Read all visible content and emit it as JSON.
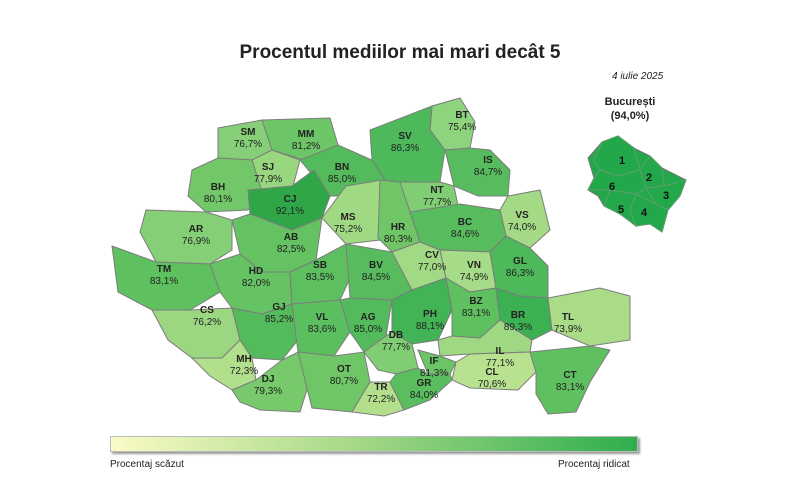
{
  "title": "Procentul mediilor mai mari decât 5",
  "date": "4 iulie 2025",
  "bucuresti": {
    "name": "București",
    "value": "(94,0%)",
    "sectors": [
      "1",
      "2",
      "3",
      "4",
      "5",
      "6"
    ],
    "color": "#22a84a"
  },
  "legend": {
    "low_label": "Procentaj scăzut",
    "high_label": "Procentaj ridicat",
    "low_color": "#fafbc6",
    "high_color": "#2fae4e"
  },
  "counties": [
    {
      "code": "BT",
      "value": "75,4%",
      "color": "#8ed37d"
    },
    {
      "code": "SM",
      "value": "76,7%",
      "color": "#86cf78"
    },
    {
      "code": "MM",
      "value": "81,2%",
      "color": "#6cc566"
    },
    {
      "code": "SV",
      "value": "86,3%",
      "color": "#4db95a"
    },
    {
      "code": "IS",
      "value": "84,7%",
      "color": "#56bc5d"
    },
    {
      "code": "SJ",
      "value": "77,9%",
      "color": "#98d67f"
    },
    {
      "code": "BN",
      "value": "85,0%",
      "color": "#54bb5c"
    },
    {
      "code": "BH",
      "value": "80,1%",
      "color": "#72c768"
    },
    {
      "code": "CJ",
      "value": "92,1%",
      "color": "#2fa648"
    },
    {
      "code": "NT",
      "value": "77,7%",
      "color": "#80cd74"
    },
    {
      "code": "VS",
      "value": "74,0%",
      "color": "#a4da86"
    },
    {
      "code": "MS",
      "value": "75,2%",
      "color": "#a0d984"
    },
    {
      "code": "HR",
      "value": "80,3%",
      "color": "#70c667"
    },
    {
      "code": "BC",
      "value": "84,6%",
      "color": "#57bc5e"
    },
    {
      "code": "AR",
      "value": "76,9%",
      "color": "#85cf77"
    },
    {
      "code": "AB",
      "value": "82,5%",
      "color": "#64c262"
    },
    {
      "code": "TM",
      "value": "83,1%",
      "color": "#5fc060"
    },
    {
      "code": "HD",
      "value": "82,0%",
      "color": "#66c363"
    },
    {
      "code": "SB",
      "value": "83,5%",
      "color": "#5dbf5f"
    },
    {
      "code": "BV",
      "value": "84,5%",
      "color": "#58bc5e"
    },
    {
      "code": "CV",
      "value": "77,0%",
      "color": "#a2d985"
    },
    {
      "code": "VN",
      "value": "74,9%",
      "color": "#a6db87"
    },
    {
      "code": "GL",
      "value": "86,3%",
      "color": "#4db95a"
    },
    {
      "code": "CS",
      "value": "76,2%",
      "color": "#9bd781"
    },
    {
      "code": "GJ",
      "value": "85,2%",
      "color": "#53bb5b"
    },
    {
      "code": "VL",
      "value": "83,6%",
      "color": "#5cbf5f"
    },
    {
      "code": "AG",
      "value": "85,0%",
      "color": "#54bb5c"
    },
    {
      "code": "PH",
      "value": "88,1%",
      "color": "#42b455"
    },
    {
      "code": "BZ",
      "value": "83,1%",
      "color": "#5fc060"
    },
    {
      "code": "BR",
      "value": "89,3%",
      "color": "#3bb152"
    },
    {
      "code": "TL",
      "value": "73,9%",
      "color": "#aadc88"
    },
    {
      "code": "MH",
      "value": "72,3%",
      "color": "#b2df8c"
    },
    {
      "code": "DB",
      "value": "77,7%",
      "color": "#80cd74"
    },
    {
      "code": "IL",
      "value": "77,1%",
      "color": "#9ed883"
    },
    {
      "code": "DJ",
      "value": "79,3%",
      "color": "#77c96b"
    },
    {
      "code": "OT",
      "value": "80,7%",
      "color": "#6ec666"
    },
    {
      "code": "IF",
      "value": "81,3%",
      "color": "#6bc565"
    },
    {
      "code": "CL",
      "value": "70,6%",
      "color": "#b9e290"
    },
    {
      "code": "CT",
      "value": "83,1%",
      "color": "#5fc060"
    },
    {
      "code": "TR",
      "value": "72,2%",
      "color": "#b3df8c"
    },
    {
      "code": "GR",
      "value": "84,0%",
      "color": "#5abe5e"
    }
  ]
}
